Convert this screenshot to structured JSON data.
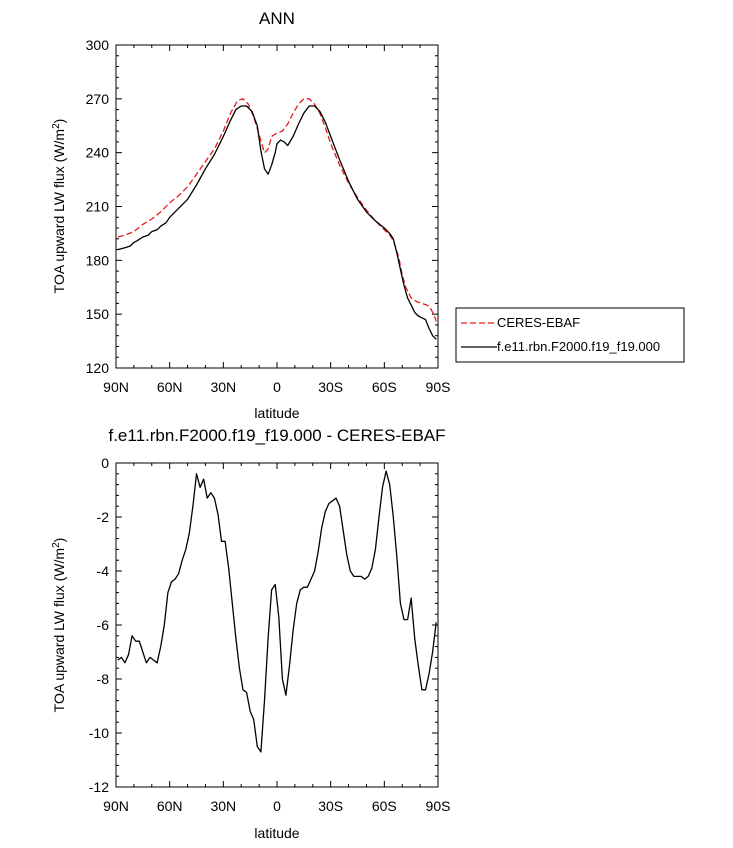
{
  "chart_data": [
    {
      "type": "line",
      "title": "ANN",
      "xlabel": "latitude",
      "ylabel": "TOA upward LW flux (W/m",
      "ylabel_sup": "2",
      "ylabel_close": ")",
      "xlim": [
        90,
        -90
      ],
      "ylim": [
        120,
        300
      ],
      "x_ticks": [
        90,
        60,
        30,
        0,
        -30,
        -60,
        -90
      ],
      "x_tick_labels": [
        "90N",
        "60N",
        "30N",
        "0",
        "30S",
        "60S",
        "90S"
      ],
      "y_ticks": [
        120,
        150,
        180,
        210,
        240,
        270,
        300
      ],
      "y_tick_labels": [
        "120",
        "150",
        "180",
        "210",
        "240",
        "270",
        "300"
      ],
      "legend_position": "right",
      "series": [
        {
          "name": "CERES-EBAF",
          "color": "#e41a1c",
          "dash": "dashed",
          "x": [
            89,
            85,
            80,
            75,
            70,
            65,
            60,
            55,
            50,
            45,
            40,
            35,
            30,
            26,
            22,
            19,
            16,
            13,
            10,
            7,
            5,
            3,
            0,
            -3,
            -6,
            -9,
            -12,
            -15,
            -18,
            -21,
            -24,
            -27,
            -30,
            -35,
            -40,
            -45,
            -50,
            -55,
            -60,
            -63,
            -65,
            -68,
            -70,
            -72,
            -75,
            -78,
            -81,
            -84,
            -86,
            -88,
            -89
          ],
          "values": [
            193,
            194,
            196,
            200,
            203,
            207,
            212,
            216,
            221,
            228,
            235,
            242,
            252,
            262,
            269,
            270,
            267,
            260,
            250,
            240,
            242,
            249,
            251,
            252,
            256,
            262,
            267,
            270,
            270,
            267,
            262,
            254,
            245,
            233,
            223,
            215,
            208,
            202,
            197,
            194,
            191,
            182,
            172,
            165,
            159,
            157,
            156,
            155,
            153,
            149,
            146
          ]
        },
        {
          "name": "f.e11.rbn.F2000.f19_f19.000",
          "color": "#000000",
          "dash": "solid",
          "x": [
            89,
            85,
            82,
            80,
            78,
            75,
            72,
            70,
            67,
            65,
            62,
            60,
            55,
            50,
            45,
            40,
            35,
            30,
            26,
            23,
            20,
            17,
            14,
            11,
            9,
            7,
            5,
            3,
            1,
            0,
            -2,
            -4,
            -6,
            -9,
            -12,
            -15,
            -18,
            -21,
            -24,
            -27,
            -30,
            -35,
            -40,
            -45,
            -50,
            -55,
            -60,
            -63,
            -65,
            -67,
            -69,
            -71,
            -73,
            -75,
            -77,
            -79,
            -81,
            -83,
            -85,
            -87,
            -89
          ],
          "values": [
            186,
            187,
            188,
            190,
            191,
            193,
            194,
            196,
            197,
            199,
            201,
            204,
            209,
            214,
            222,
            231,
            239,
            249,
            258,
            264,
            266,
            266,
            263,
            255,
            241,
            231,
            228,
            233,
            240,
            245,
            247,
            246,
            244,
            249,
            256,
            262,
            266,
            266,
            263,
            257,
            249,
            236,
            224,
            214,
            207,
            202,
            198,
            195,
            192,
            184,
            175,
            166,
            159,
            155,
            151,
            149,
            148,
            147,
            142,
            138,
            136
          ]
        }
      ]
    },
    {
      "type": "line",
      "title": "f.e11.rbn.F2000.f19_f19.000 - CERES-EBAF",
      "xlabel": "latitude",
      "ylabel": "TOA upward LW flux (W/m",
      "ylabel_sup": "2",
      "ylabel_close": ")",
      "xlim": [
        90,
        -90
      ],
      "ylim": [
        -12,
        0
      ],
      "x_ticks": [
        90,
        60,
        30,
        0,
        -30,
        -60,
        -90
      ],
      "x_tick_labels": [
        "90N",
        "60N",
        "30N",
        "0",
        "30S",
        "60S",
        "90S"
      ],
      "y_ticks": [
        -12,
        -10,
        -8,
        -6,
        -4,
        -2,
        0
      ],
      "y_tick_labels": [
        "-12",
        "-10",
        "-8",
        "-6",
        "-4",
        "-2",
        "0"
      ],
      "series": [
        {
          "color": "#000000",
          "dash": "solid",
          "x": [
            89,
            87,
            85,
            83,
            81,
            79,
            77,
            75,
            73,
            71,
            69,
            67,
            65,
            63,
            61,
            59,
            57,
            55,
            53,
            51,
            49,
            47,
            45,
            43,
            41,
            39,
            37,
            35,
            33,
            31,
            29,
            27,
            25,
            23,
            21,
            19,
            17,
            15,
            13,
            11,
            9,
            7,
            5,
            3,
            1,
            -1,
            -3,
            -5,
            -7,
            -9,
            -11,
            -13,
            -15,
            -17,
            -19,
            -21,
            -23,
            -25,
            -27,
            -29,
            -31,
            -33,
            -35,
            -37,
            -39,
            -41,
            -43,
            -45,
            -47,
            -49,
            -51,
            -53,
            -55,
            -57,
            -59,
            -61,
            -63,
            -65,
            -67,
            -69,
            -71,
            -73,
            -75,
            -77,
            -79,
            -81,
            -83,
            -85,
            -87,
            -89
          ],
          "values": [
            -7.3,
            -7.2,
            -7.4,
            -7.1,
            -6.4,
            -6.6,
            -6.6,
            -7.0,
            -7.4,
            -7.2,
            -7.3,
            -7.4,
            -6.8,
            -6.0,
            -4.8,
            -4.4,
            -4.3,
            -4.1,
            -3.6,
            -3.2,
            -2.6,
            -1.6,
            -0.4,
            -0.9,
            -0.6,
            -1.3,
            -1.1,
            -1.3,
            -1.9,
            -2.9,
            -2.9,
            -3.9,
            -5.2,
            -6.5,
            -7.6,
            -8.4,
            -8.5,
            -9.2,
            -9.5,
            -10.5,
            -10.7,
            -8.8,
            -6.5,
            -4.7,
            -4.5,
            -5.7,
            -8.0,
            -8.6,
            -7.5,
            -6.2,
            -5.2,
            -4.7,
            -4.6,
            -4.6,
            -4.3,
            -4.0,
            -3.3,
            -2.4,
            -1.8,
            -1.5,
            -1.4,
            -1.3,
            -1.6,
            -2.5,
            -3.4,
            -4.0,
            -4.2,
            -4.2,
            -4.2,
            -4.3,
            -4.2,
            -3.9,
            -3.2,
            -2.0,
            -0.9,
            -0.3,
            -0.8,
            -2.0,
            -3.5,
            -5.2,
            -5.8,
            -5.8,
            -5.0,
            -6.5,
            -7.5,
            -8.4,
            -8.4,
            -7.8,
            -7.0,
            -5.9
          ]
        }
      ]
    }
  ]
}
